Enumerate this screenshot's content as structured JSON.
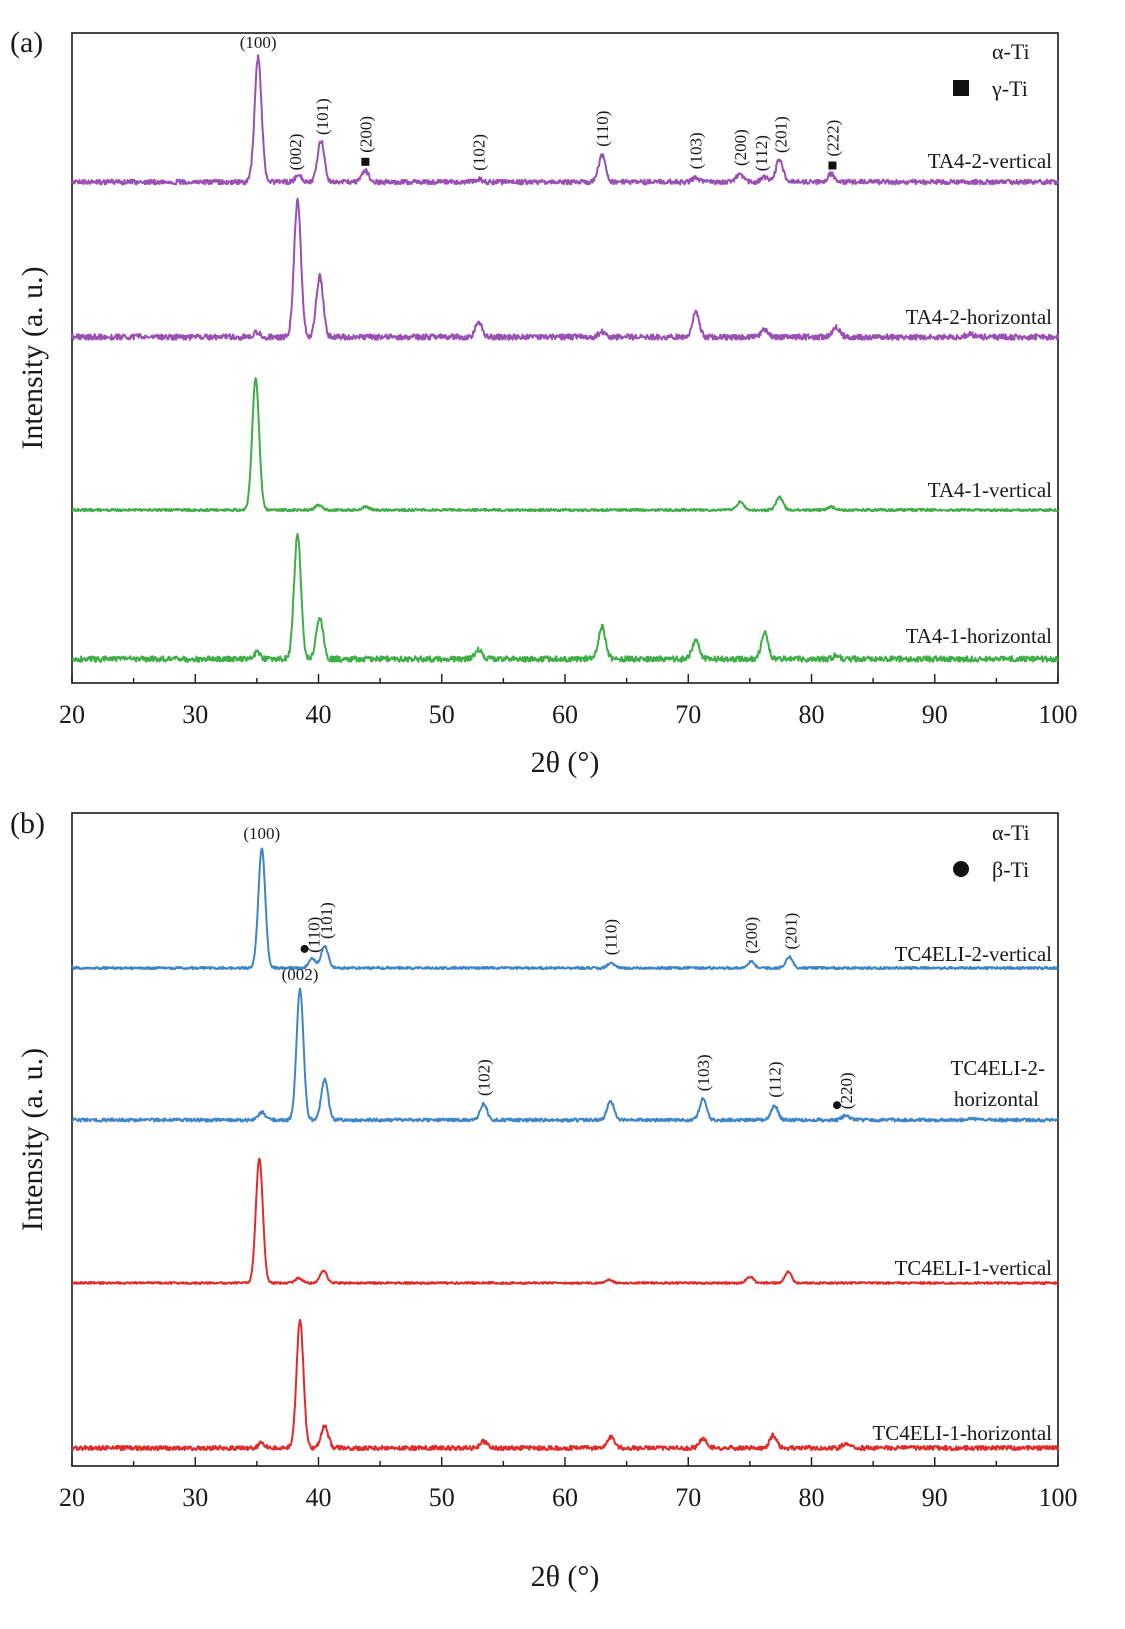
{
  "chart_data": [
    {
      "type": "line",
      "panel_label": "(a)",
      "xlabel": "2θ (°)",
      "ylabel": "Intensity (a. u.)",
      "xlim": [
        20,
        100
      ],
      "xticks": [
        "20",
        "30",
        "40",
        "50",
        "60",
        "70",
        "80",
        "90",
        "100"
      ],
      "legend": [
        {
          "marker": "none",
          "label": "α-Ti"
        },
        {
          "marker": "square",
          "label": "γ-Ti"
        }
      ],
      "series": [
        {
          "name": "TA4-2-vertical",
          "color": "#9a4fb3",
          "baseline": 0,
          "peaks": [
            [
              35.1,
              0.78
            ],
            [
              38.4,
              0.04
            ],
            [
              40.2,
              0.26
            ],
            [
              43.8,
              0.07
            ],
            [
              53.0,
              0.02
            ],
            [
              63.0,
              0.17
            ],
            [
              70.6,
              0.03
            ],
            [
              74.2,
              0.05
            ],
            [
              76.2,
              0.03
            ],
            [
              77.4,
              0.14
            ],
            [
              81.6,
              0.05
            ]
          ],
          "peak_labels": [
            {
              "x": 35.1,
              "text": "(100)",
              "rotated": false
            },
            {
              "x": 38.1,
              "text": "(002)",
              "rotated": true
            },
            {
              "x": 40.3,
              "text": "(101)",
              "rotated": true
            },
            {
              "x": 43.8,
              "text": "(200)",
              "rotated": true,
              "marker": "square"
            },
            {
              "x": 53.0,
              "text": "(102)",
              "rotated": true
            },
            {
              "x": 63.0,
              "text": "(110)",
              "rotated": true
            },
            {
              "x": 70.6,
              "text": "(103)",
              "rotated": true
            },
            {
              "x": 74.2,
              "text": "(200)",
              "rotated": true
            },
            {
              "x": 75.9,
              "text": "(112)",
              "rotated": true
            },
            {
              "x": 77.5,
              "text": "(201)",
              "rotated": true
            },
            {
              "x": 81.7,
              "text": "(222)",
              "rotated": true,
              "marker": "square"
            }
          ]
        },
        {
          "name": "TA4-2-horizontal",
          "color": "#9a4fb3",
          "baseline": 0,
          "peaks": [
            [
              35.0,
              0.03
            ],
            [
              38.3,
              0.85
            ],
            [
              40.1,
              0.38
            ],
            [
              53.0,
              0.09
            ],
            [
              63.0,
              0.03
            ],
            [
              70.6,
              0.15
            ],
            [
              76.2,
              0.05
            ],
            [
              82.0,
              0.06
            ],
            [
              92.8,
              0.02
            ]
          ]
        },
        {
          "name": "TA4-1-vertical",
          "color": "#3fae47",
          "baseline": 0,
          "peaks": [
            [
              34.9,
              0.82
            ],
            [
              40.0,
              0.03
            ],
            [
              43.8,
              0.02
            ],
            [
              74.2,
              0.05
            ],
            [
              77.4,
              0.08
            ],
            [
              81.6,
              0.02
            ]
          ]
        },
        {
          "name": "TA4-1-horizontal",
          "color": "#3fae47",
          "baseline": 0,
          "peaks": [
            [
              35.0,
              0.04
            ],
            [
              38.3,
              0.78
            ],
            [
              40.1,
              0.26
            ],
            [
              53.0,
              0.06
            ],
            [
              63.0,
              0.2
            ],
            [
              70.6,
              0.12
            ],
            [
              76.2,
              0.16
            ],
            [
              82.0,
              0.02
            ]
          ]
        }
      ]
    },
    {
      "type": "line",
      "panel_label": "(b)",
      "xlabel": "2θ (°)",
      "ylabel": "Intensity (a. u.)",
      "xlim": [
        20,
        100
      ],
      "xticks": [
        "20",
        "30",
        "40",
        "50",
        "60",
        "70",
        "80",
        "90",
        "100"
      ],
      "legend": [
        {
          "marker": "none",
          "label": "α-Ti"
        },
        {
          "marker": "circle",
          "label": "β-Ti"
        }
      ],
      "series": [
        {
          "name": "TC4ELI-2-vertical",
          "color": "#3d85c6",
          "baseline": 0,
          "peaks": [
            [
              35.4,
              0.75
            ],
            [
              39.5,
              0.06
            ],
            [
              40.5,
              0.14
            ],
            [
              63.7,
              0.03
            ],
            [
              75.1,
              0.04
            ],
            [
              78.2,
              0.07
            ]
          ],
          "peak_labels": [
            {
              "x": 35.4,
              "text": "(100)",
              "rotated": false
            },
            {
              "x": 39.6,
              "text": "(110)",
              "rotated": true,
              "marker": "circle"
            },
            {
              "x": 40.6,
              "text": "(101)",
              "rotated": true
            },
            {
              "x": 63.7,
              "text": "(110)",
              "rotated": true
            },
            {
              "x": 75.1,
              "text": "(200)",
              "rotated": true
            },
            {
              "x": 78.3,
              "text": "(201)",
              "rotated": true
            }
          ]
        },
        {
          "name": "TC4ELI-2-horizontal",
          "label_lines": [
            "TC4ELI-2-",
            "horizontal"
          ],
          "color": "#3d85c6",
          "baseline": 0,
          "peaks": [
            [
              35.4,
              0.05
            ],
            [
              38.5,
              0.82
            ],
            [
              40.5,
              0.25
            ],
            [
              53.4,
              0.1
            ],
            [
              63.7,
              0.12
            ],
            [
              71.2,
              0.13
            ],
            [
              77.0,
              0.09
            ],
            [
              82.8,
              0.03
            ],
            [
              93.0,
              0.01
            ]
          ],
          "peak_labels": [
            {
              "x": 38.5,
              "text": "(002)",
              "rotated": false
            },
            {
              "x": 53.4,
              "text": "(102)",
              "rotated": true
            },
            {
              "x": 71.2,
              "text": "(103)",
              "rotated": true
            },
            {
              "x": 77.0,
              "text": "(112)",
              "rotated": true
            },
            {
              "x": 82.8,
              "text": "(220)",
              "rotated": true,
              "marker": "circle"
            }
          ]
        },
        {
          "name": "TC4ELI-1-vertical",
          "color": "#e02b2b",
          "baseline": 0,
          "peaks": [
            [
              35.2,
              0.78
            ],
            [
              38.4,
              0.03
            ],
            [
              40.4,
              0.08
            ],
            [
              63.6,
              0.02
            ],
            [
              75.0,
              0.04
            ],
            [
              78.1,
              0.07
            ]
          ]
        },
        {
          "name": "TC4ELI-1-horizontal",
          "color": "#e02b2b",
          "baseline": 0,
          "peaks": [
            [
              35.4,
              0.03
            ],
            [
              38.5,
              0.8
            ],
            [
              40.5,
              0.14
            ],
            [
              53.4,
              0.04
            ],
            [
              63.7,
              0.07
            ],
            [
              71.2,
              0.06
            ],
            [
              76.9,
              0.08
            ],
            [
              82.8,
              0.03
            ]
          ]
        }
      ]
    }
  ]
}
